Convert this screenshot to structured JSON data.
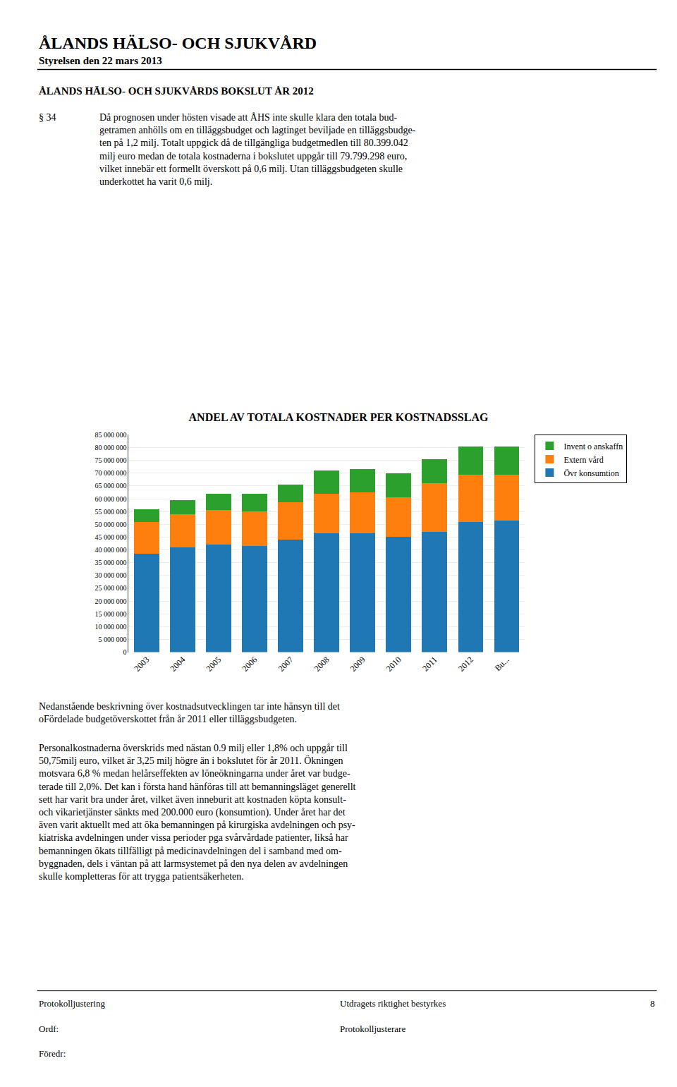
{
  "chart_data": {
    "type": "bar",
    "title": "ANDEL AV TOTALA KOSTNADER PER KOSTNADSSLAG",
    "categories": [
      "2003",
      "2004",
      "2005",
      "2006",
      "2007",
      "2008",
      "2009",
      "2010",
      "2011",
      "2012",
      "Bu..."
    ],
    "stacked": true,
    "series": [
      {
        "name": "Övr konsumtion",
        "values": [
          38500000,
          41000000,
          42000000,
          41500000,
          44000000,
          46500000,
          46500000,
          45000000,
          47000000,
          51000000,
          51500000
        ]
      },
      {
        "name": "Extern vård",
        "values": [
          12500000,
          13000000,
          13500000,
          13500000,
          14500000,
          15500000,
          16000000,
          15500000,
          19000000,
          18500000,
          18000000
        ]
      },
      {
        "name": "Invent o anskaffn",
        "values": [
          5000000,
          5500000,
          6500000,
          7000000,
          7000000,
          9000000,
          9000000,
          9500000,
          9500000,
          11000000,
          11000000
        ]
      }
    ],
    "ylim": [
      0,
      85000000
    ],
    "yticks": [
      0,
      {
        "value": 5000000,
        "label": "5 000 000"
      },
      {
        "value": 10000000,
        "label": "10 000 000"
      },
      {
        "value": 15000000,
        "label": "15 000 000"
      },
      {
        "value": 20000000,
        "label": "20 000 000"
      },
      {
        "value": 25000000,
        "label": "25 000 000"
      },
      {
        "value": 30000000,
        "label": "30 000 000"
      },
      {
        "value": 35000000,
        "label": "35 000 000"
      },
      {
        "value": 40000000,
        "label": "40 000 000"
      },
      {
        "value": 45000000,
        "label": "45 000 000"
      },
      {
        "value": 50000000,
        "label": "50 000 000"
      },
      {
        "value": 55000000,
        "label": "55 000 000"
      },
      {
        "value": 60000000,
        "label": "60 000 000"
      },
      {
        "value": 65000000,
        "label": "65 000 000"
      },
      {
        "value": 70000000,
        "label": "70 000 000"
      },
      {
        "value": 75000000,
        "label": "75 000 000"
      },
      {
        "value": 80000000,
        "label": "80 000 000"
      },
      {
        "value": 85000000,
        "label": "85 000 000"
      }
    ],
    "grid": true,
    "legend": "right",
    "annotations": [
      "ÅLANDS HÄLSO- OCH SJUKVÅRD",
      "Styrelsen den 22 mars 2013",
      "ÅLANDS HÄLSO- OCH SJUKVÅRDS BOKSLUT ÅR 2012",
      "§ 34",
      "Då prognosen under hösten visade att ÅHS inte skulle klara den totala bud-\ngetramen anhölls om en tilläggsbudget och lagtinget beviljade en tilläggsbudge-\nten på 1,2 milj. Totalt uppgick då de tillgängliga budgetmedlen till 80.399.042\nmilj euro medan de totala kostnaderna i bokslutet uppgår till 79.799.298 euro,\nvilket innebär ett formellt överskott på 0,6 milj. Utan tilläggsbudgeten skulle\nunderkottet ha varit 0,6 milj.",
      "Nedanstående beskrivning över kostnadsutvecklingen tar inte hänsyn till det\noFördelade budgetöverskottet från år 2011 eller tilläggsbudgeten.",
      "Personalkostnaderna överskrids med nästan 0.9 milj eller 1,8% och uppgår till\n50,75milj euro, vilket är 3,25 milj högre än i bokslutet för år 2011. Ökningen\nmotsvara 6,8 % medan helårseffekten av löneökningarna under året var budge-\nterade till 2,0%. Det kan i första hand hänföras till att bemanningsläget generellt\nsett har varit bra under året, vilket även inneburit att kostnaden köpta konsult-\noch vikarietjänster sänkts med 200.000 euro (konsumtion). Under året har det\näven varit aktuellt med att öka bemanningen på kirurgiska avdelningen och psy-\nkiatriska avdelningen under vissa perioder pga svårvårdade patienter, likså har\nbemanningen ökats tillfälligt på medicinavdelningen del i samband med om-\nbyggnaden, dels i väntan på att larmsystemet på den nya delen av avdelningen\nskulle kompletteras för att trygga patientsäkerheten.",
      "Protokolljustering",
      "Utdragets riktighet bestyrkes",
      "8",
      "Ordf:",
      "Protokolljusterare",
      "Föredr:"
    ]
  }
}
